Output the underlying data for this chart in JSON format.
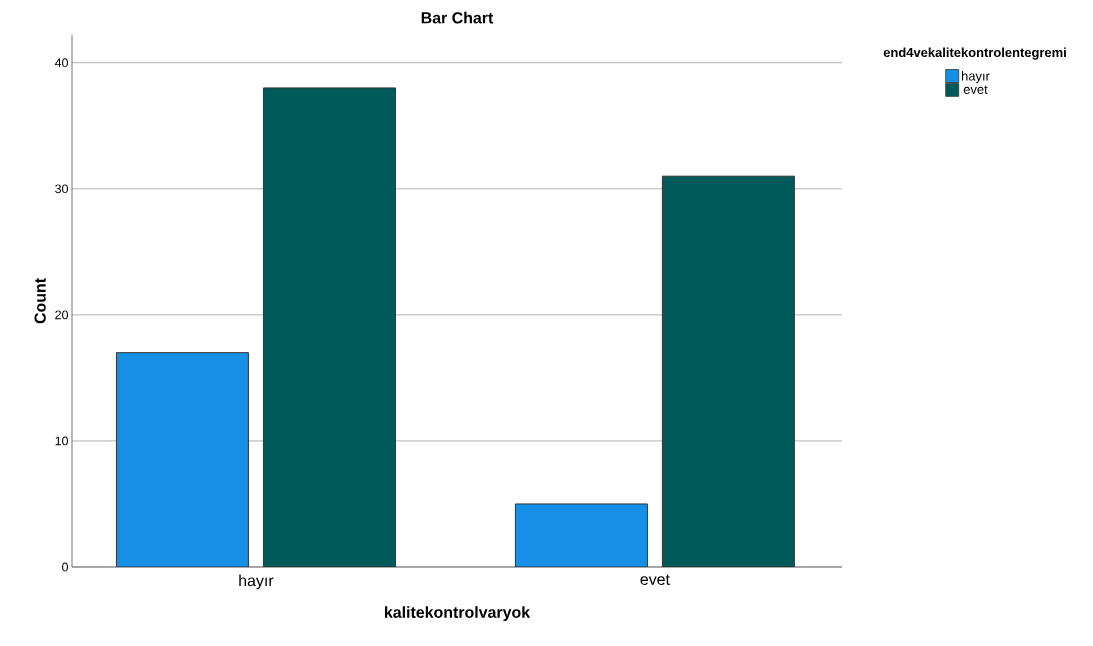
{
  "chart_data": {
    "type": "bar",
    "title": "Bar Chart",
    "xlabel": "kalitekontrolvaryok",
    "ylabel": "Count",
    "legend_title": "end4vekalitekontrolentegremi",
    "categories": [
      "hayır",
      "evet"
    ],
    "series": [
      {
        "name": "hayır",
        "color": "#1590e6",
        "values": [
          17,
          5
        ]
      },
      {
        "name": "evet",
        "color": "#005a5a",
        "values": [
          38,
          31
        ]
      }
    ],
    "ylim": [
      0,
      42.2
    ],
    "yticks": [
      0,
      10,
      20,
      30,
      40
    ],
    "grid": "y",
    "legend": "top right"
  }
}
